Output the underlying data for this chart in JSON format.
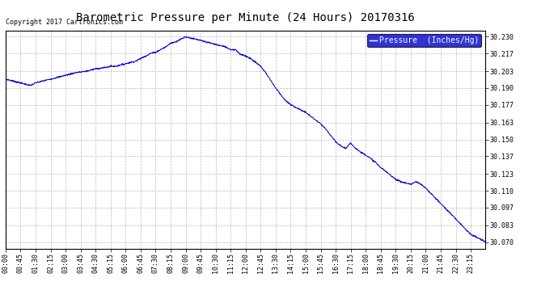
{
  "title": "Barometric Pressure per Minute (24 Hours) 20170316",
  "copyright": "Copyright 2017 Cartronics.com",
  "legend_label": "Pressure  (Inches/Hg)",
  "legend_bg": "#0000cc",
  "legend_fg": "#ffffff",
  "line_color": "#0000cc",
  "bg_color": "#ffffff",
  "grid_color": "#bbbbbb",
  "y_ticks": [
    30.07,
    30.083,
    30.097,
    30.11,
    30.123,
    30.137,
    30.15,
    30.163,
    30.177,
    30.19,
    30.203,
    30.217,
    30.23
  ],
  "y_min": 30.065,
  "y_max": 30.235,
  "title_fontsize": 10,
  "tick_fontsize": 6,
  "copyright_fontsize": 6,
  "legend_fontsize": 7,
  "keypoints": [
    [
      0,
      30.197
    ],
    [
      30,
      30.195
    ],
    [
      60,
      30.193
    ],
    [
      75,
      30.192
    ],
    [
      90,
      30.194
    ],
    [
      105,
      30.195
    ],
    [
      120,
      30.196
    ],
    [
      150,
      30.198
    ],
    [
      180,
      30.2
    ],
    [
      210,
      30.202
    ],
    [
      240,
      30.203
    ],
    [
      270,
      30.205
    ],
    [
      300,
      30.206
    ],
    [
      315,
      30.207
    ],
    [
      330,
      30.207
    ],
    [
      345,
      30.208
    ],
    [
      360,
      30.209
    ],
    [
      375,
      30.21
    ],
    [
      390,
      30.211
    ],
    [
      405,
      30.213
    ],
    [
      420,
      30.215
    ],
    [
      435,
      30.217
    ],
    [
      450,
      30.218
    ],
    [
      465,
      30.22
    ],
    [
      480,
      30.222
    ],
    [
      495,
      30.225
    ],
    [
      510,
      30.226
    ],
    [
      525,
      30.228
    ],
    [
      540,
      30.23
    ],
    [
      555,
      30.229
    ],
    [
      570,
      30.228
    ],
    [
      585,
      30.227
    ],
    [
      600,
      30.226
    ],
    [
      615,
      30.225
    ],
    [
      630,
      30.224
    ],
    [
      645,
      30.223
    ],
    [
      660,
      30.222
    ],
    [
      675,
      30.22
    ],
    [
      690,
      30.22
    ],
    [
      705,
      30.216
    ],
    [
      720,
      30.215
    ],
    [
      735,
      30.213
    ],
    [
      750,
      30.21
    ],
    [
      765,
      30.207
    ],
    [
      780,
      30.202
    ],
    [
      795,
      30.196
    ],
    [
      810,
      30.19
    ],
    [
      825,
      30.185
    ],
    [
      840,
      30.18
    ],
    [
      855,
      30.177
    ],
    [
      870,
      30.175
    ],
    [
      885,
      30.173
    ],
    [
      900,
      30.171
    ],
    [
      915,
      30.168
    ],
    [
      930,
      30.165
    ],
    [
      945,
      30.162
    ],
    [
      960,
      30.158
    ],
    [
      975,
      30.153
    ],
    [
      990,
      30.148
    ],
    [
      1005,
      30.145
    ],
    [
      1020,
      30.143
    ],
    [
      1035,
      30.147
    ],
    [
      1050,
      30.143
    ],
    [
      1065,
      30.14
    ],
    [
      1080,
      30.138
    ],
    [
      1095,
      30.135
    ],
    [
      1110,
      30.132
    ],
    [
      1125,
      30.128
    ],
    [
      1140,
      30.125
    ],
    [
      1155,
      30.122
    ],
    [
      1170,
      30.119
    ],
    [
      1185,
      30.117
    ],
    [
      1200,
      30.116
    ],
    [
      1215,
      30.115
    ],
    [
      1230,
      30.117
    ],
    [
      1245,
      30.115
    ],
    [
      1260,
      30.112
    ],
    [
      1275,
      30.108
    ],
    [
      1290,
      30.104
    ],
    [
      1305,
      30.1
    ],
    [
      1320,
      30.096
    ],
    [
      1335,
      30.092
    ],
    [
      1350,
      30.088
    ],
    [
      1365,
      30.084
    ],
    [
      1380,
      30.08
    ],
    [
      1395,
      30.076
    ],
    [
      1410,
      30.074
    ],
    [
      1425,
      30.072
    ],
    [
      1439,
      30.07
    ]
  ]
}
